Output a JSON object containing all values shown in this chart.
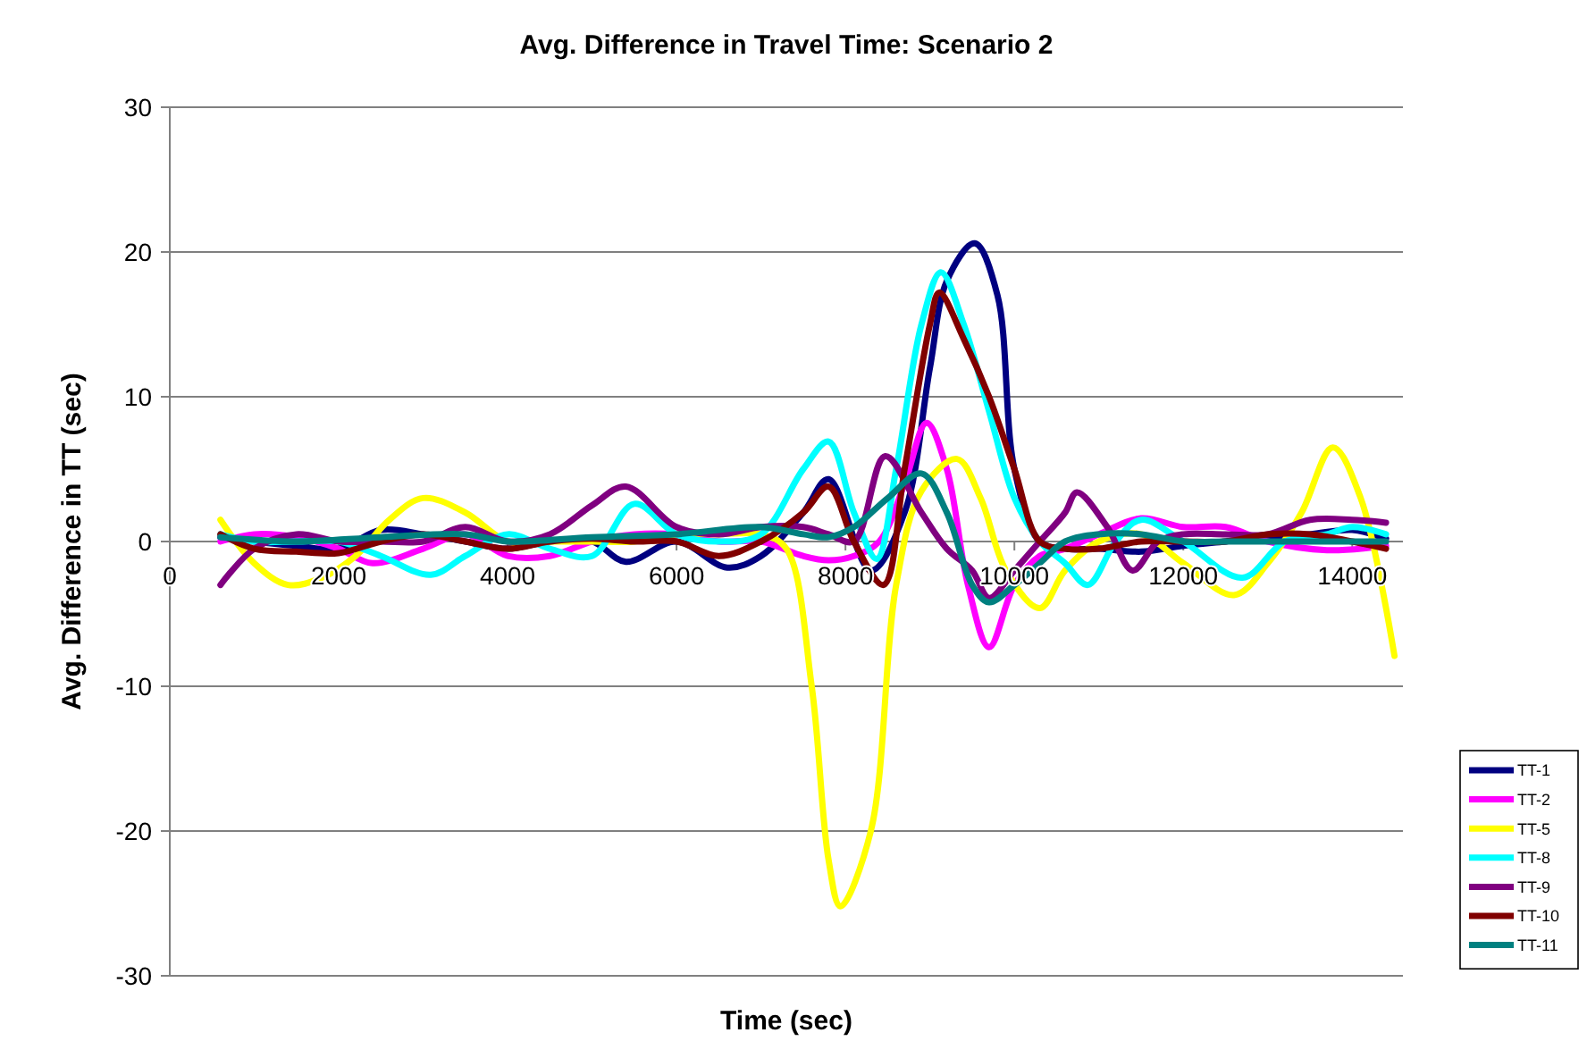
{
  "chart_data": {
    "type": "line",
    "title": "Avg. Difference in Travel Time: Scenario 2",
    "xlabel": "Time (sec)",
    "ylabel": "Avg. Difference in TT (sec)",
    "xlim": [
      0,
      14600
    ],
    "xticks": [
      0,
      2000,
      4000,
      6000,
      8000,
      10000,
      12000,
      14000
    ],
    "ylim": [
      -30,
      30
    ],
    "yticks": [
      -30,
      -20,
      -10,
      0,
      10,
      20,
      30
    ],
    "grid": "y",
    "legend": "right",
    "marker": "none",
    "line_style": "solid",
    "series": [
      {
        "name": "TT-1",
        "color": "#000080",
        "x": [
          600,
          1000,
          1500,
          2000,
          2500,
          3000,
          3500,
          4000,
          4500,
          5000,
          5400,
          6000,
          6600,
          7000,
          7500,
          7800,
          8300,
          8700,
          9000,
          9200,
          9530,
          9800,
          10000,
          10300,
          10600,
          11000,
          11500,
          12000,
          12500,
          13000,
          13500,
          14000,
          14400
        ],
        "values": [
          0.3,
          0,
          -0.3,
          -0.5,
          0.8,
          0.5,
          0,
          -0.5,
          0,
          0,
          -1.4,
          0,
          -1.8,
          -1,
          2,
          4.3,
          -2,
          2,
          12,
          18,
          20.6,
          17,
          5,
          0,
          -0.5,
          -0.5,
          -0.7,
          -0.3,
          0,
          0.3,
          0.5,
          0.8,
          0.2
        ]
      },
      {
        "name": "TT-2",
        "color": "#ff00ff",
        "x": [
          600,
          1000,
          1500,
          2000,
          2400,
          3000,
          3500,
          4000,
          4500,
          5000,
          5500,
          6000,
          6500,
          7000,
          7500,
          7800,
          8100,
          8400,
          8700,
          8960,
          9200,
          9450,
          9700,
          10000,
          10300,
          10600,
          11000,
          11500,
          12000,
          12500,
          13000,
          13700,
          14400
        ],
        "values": [
          0,
          0.5,
          0.3,
          -0.5,
          -1.5,
          -0.5,
          0.5,
          -1,
          -1,
          0,
          0.5,
          0.5,
          0,
          0,
          -1,
          -1.3,
          -1,
          0,
          4,
          8.2,
          5,
          -3,
          -7.3,
          -3,
          -1,
          -0.5,
          0.5,
          1.6,
          1,
          1,
          0,
          -0.6,
          -0.3
        ]
      },
      {
        "name": "TT-5",
        "color": "#ffff00",
        "x": [
          600,
          1000,
          1400,
          1800,
          2200,
          2600,
          3000,
          3500,
          4000,
          4500,
          5000,
          5500,
          6000,
          6500,
          7000,
          7300,
          7600,
          7800,
          7940,
          8300,
          8600,
          8900,
          9320,
          9600,
          9900,
          10300,
          10600,
          11000,
          11500,
          12000,
          12600,
          13000,
          13400,
          13770,
          14100,
          14500
        ],
        "values": [
          1.5,
          -1.5,
          -3,
          -2.5,
          -1,
          1.5,
          3,
          2,
          0,
          0,
          0,
          0,
          0.5,
          0.5,
          0.5,
          -0.5,
          -10,
          -22,
          -25.2,
          -20,
          -3,
          3.5,
          5.7,
          3,
          -2,
          -4.6,
          -2,
          0,
          0.5,
          -1.5,
          -3.7,
          -1.5,
          2,
          6.5,
          3,
          -7.9
        ]
      },
      {
        "name": "TT-8",
        "color": "#00ffff",
        "x": [
          600,
          1000,
          1500,
          2000,
          2500,
          3090,
          3500,
          4000,
          4500,
          5000,
          5500,
          6000,
          6500,
          7000,
          7500,
          7800,
          8100,
          8370,
          8600,
          8900,
          9130,
          9400,
          9700,
          10000,
          10300,
          10600,
          10870,
          11200,
          11500,
          12000,
          12700,
          13200,
          13700,
          14000,
          14400
        ],
        "values": [
          0.5,
          0,
          0,
          0,
          -1,
          -2.3,
          -1,
          0.5,
          -0.5,
          -1,
          2.6,
          0.5,
          0,
          0.5,
          5,
          6.9,
          2,
          -1.2,
          5,
          15,
          18.6,
          15,
          9,
          3,
          0,
          -1.5,
          -3,
          0,
          1.5,
          0,
          -2.5,
          0,
          0.5,
          1,
          0.5
        ]
      },
      {
        "name": "TT-9",
        "color": "#800080",
        "x": [
          600,
          1000,
          1500,
          2000,
          2500,
          3000,
          3500,
          4000,
          4500,
          5000,
          5400,
          6000,
          6500,
          7000,
          7500,
          7800,
          8100,
          8470,
          8900,
          9200,
          9500,
          9700,
          10000,
          10300,
          10600,
          10740,
          11100,
          11400,
          11700,
          12000,
          12500,
          13000,
          13500,
          14000,
          14400
        ],
        "values": [
          -3,
          -0.5,
          0.5,
          0,
          0,
          0,
          1,
          0,
          0.5,
          2.5,
          3.8,
          1,
          0.5,
          1,
          1,
          0.5,
          0,
          5.9,
          2,
          -0.5,
          -2,
          -3.9,
          -2,
          0,
          2,
          3.4,
          1,
          -2,
          0,
          0.5,
          0.5,
          0.5,
          1.5,
          1.5,
          1.3
        ]
      },
      {
        "name": "TT-10",
        "color": "#800000",
        "x": [
          600,
          1000,
          1500,
          2000,
          2500,
          3000,
          3500,
          4000,
          4500,
          5000,
          5500,
          6000,
          6500,
          7000,
          7500,
          7800,
          8100,
          8450,
          8700,
          9000,
          9110,
          9400,
          9700,
          10000,
          10300,
          10600,
          11000,
          11500,
          12000,
          12500,
          13000,
          13500,
          14000,
          14400
        ],
        "values": [
          0.5,
          -0.5,
          -0.7,
          -0.8,
          0,
          0.5,
          0,
          -0.5,
          0,
          0.2,
          0,
          0,
          -1,
          0,
          2,
          3.8,
          0,
          -3,
          5,
          15,
          17.2,
          14,
          10,
          5,
          0,
          -0.5,
          -0.5,
          0,
          0,
          0,
          0.5,
          0.5,
          0,
          -0.5
        ]
      },
      {
        "name": "TT-11",
        "color": "#008080",
        "x": [
          600,
          1500,
          2500,
          3500,
          4000,
          5000,
          6000,
          7000,
          7500,
          7800,
          8100,
          8500,
          8900,
          9200,
          9500,
          9700,
          10000,
          10300,
          10600,
          11000,
          11500,
          12000,
          12500,
          13000,
          13500,
          14000,
          14400
        ],
        "values": [
          0.3,
          0,
          0.3,
          0.5,
          0,
          0.3,
          0.5,
          1,
          0.5,
          0.3,
          1,
          3,
          4.7,
          2,
          -3,
          -4.2,
          -3,
          -1.5,
          0,
          0.5,
          0.5,
          0,
          0,
          0,
          0,
          0,
          0
        ]
      }
    ]
  }
}
